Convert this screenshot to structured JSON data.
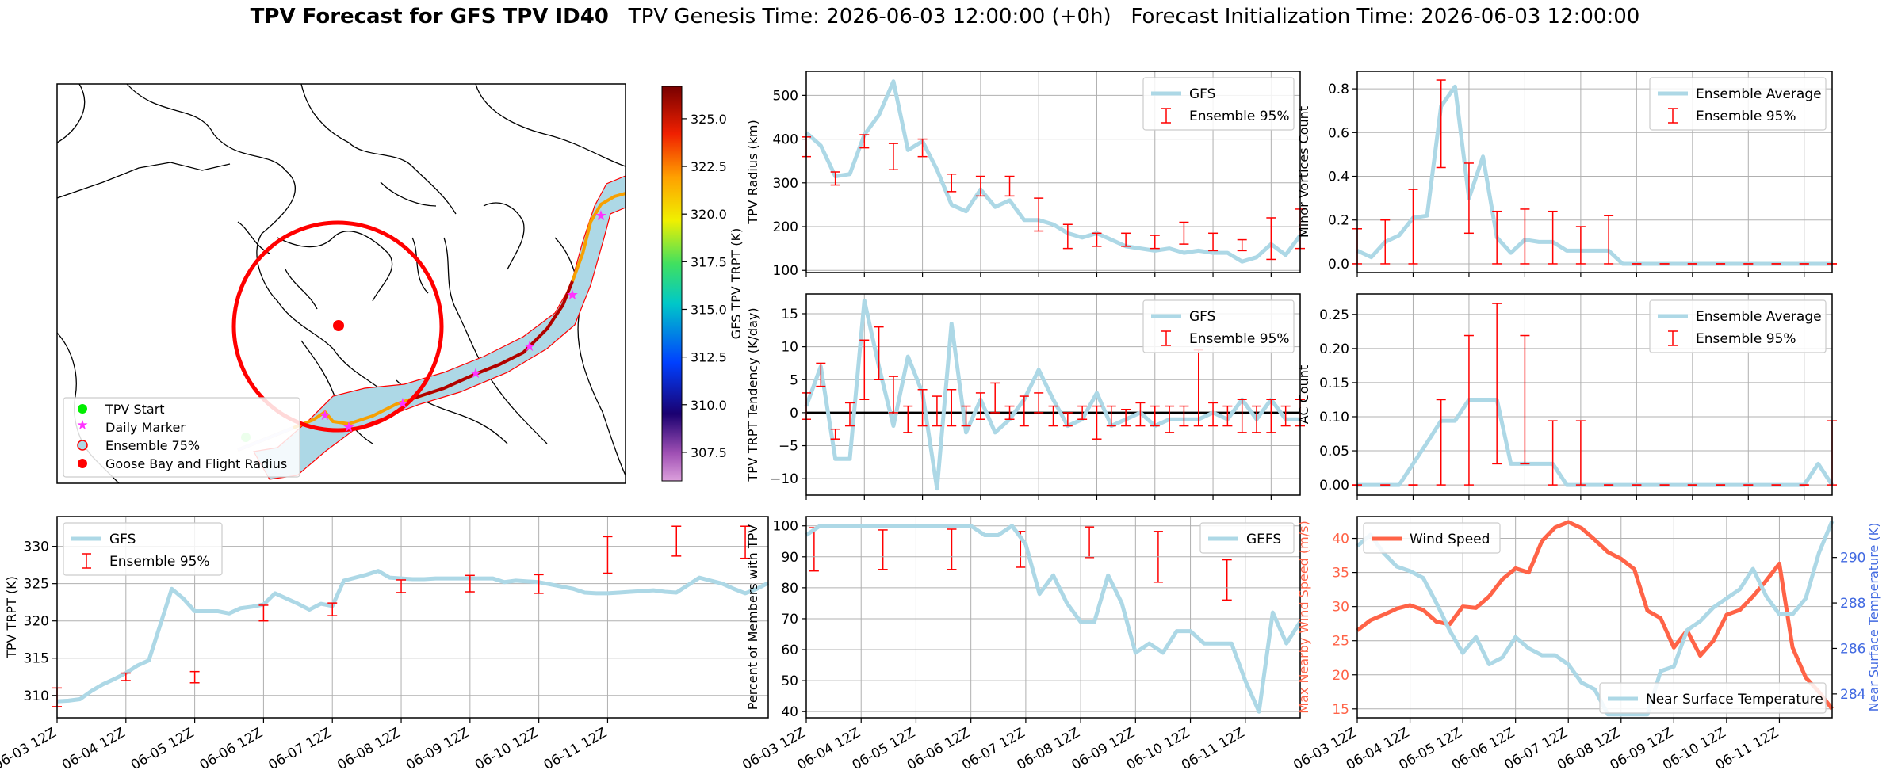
{
  "suptitle": {
    "bold": "TPV Forecast for GFS TPV ID40",
    "rest": "   TPV Genesis Time: 2026-06-03 12:00:00 (+0h)   Forecast Initialization Time: 2026-06-03 12:00:00"
  },
  "colors": {
    "light_blue": "#add8e6",
    "red": "#ff0000",
    "orange_red": "#ff6347",
    "royal_blue": "#4169e1"
  },
  "x_ticks": [
    "06-03 12Z",
    "06-04 12Z",
    "06-05 12Z",
    "06-06 12Z",
    "06-07 12Z",
    "06-08 12Z",
    "06-09 12Z",
    "06-10 12Z",
    "06-11 12Z"
  ],
  "map": {
    "legend": [
      "TPV Start",
      "Daily Marker",
      "Ensemble 75%",
      "Goose Bay and Flight Radius"
    ],
    "colorbar": {
      "label": "GFS TPV TRPT (K)",
      "min": 306,
      "max": 326.7,
      "ticks": [
        "307.5",
        "310.0",
        "312.5",
        "315.0",
        "317.5",
        "320.0",
        "322.5",
        "325.0"
      ]
    }
  },
  "chart_data": [
    {
      "id": "radius",
      "type": "line",
      "ylabel": "TPV Radius (km)",
      "ylim": [
        95,
        555
      ],
      "yticks": [
        "100",
        "200",
        "300",
        "400",
        "500"
      ],
      "legend": [
        "GFS",
        "Ensemble 95%"
      ],
      "series": [
        {
          "name": "GFS",
          "values": [
            415,
            385,
            315,
            320,
            410,
            455,
            532,
            375,
            395,
            330,
            250,
            235,
            285,
            245,
            260,
            215,
            215,
            205,
            185,
            175,
            185,
            170,
            155,
            150,
            145,
            150,
            140,
            145,
            140,
            140,
            120,
            130,
            160,
            135,
            180
          ]
        }
      ],
      "errorbars": [
        [
          0,
          405,
          360
        ],
        [
          2,
          325,
          295
        ],
        [
          4,
          410,
          380
        ],
        [
          6,
          390,
          330
        ],
        [
          8,
          400,
          360
        ],
        [
          10,
          320,
          280
        ],
        [
          12,
          315,
          270
        ],
        [
          14,
          315,
          270
        ],
        [
          16,
          265,
          190
        ],
        [
          18,
          205,
          150
        ],
        [
          20,
          185,
          155
        ],
        [
          22,
          185,
          155
        ],
        [
          24,
          180,
          150
        ],
        [
          26,
          210,
          160
        ],
        [
          28,
          185,
          145
        ],
        [
          30,
          170,
          145
        ],
        [
          32,
          220,
          125
        ],
        [
          34,
          240,
          150
        ]
      ]
    },
    {
      "id": "minor",
      "type": "line",
      "ylabel": "Minor Vortices Count",
      "ylim": [
        -0.04,
        0.88
      ],
      "yticks": [
        "0.0",
        "0.2",
        "0.4",
        "0.6",
        "0.8"
      ],
      "legend": [
        "Ensemble Average",
        "Ensemble 95%"
      ],
      "series": [
        {
          "name": "Ensemble Average",
          "values": [
            0.06,
            0.03,
            0.1,
            0.13,
            0.21,
            0.22,
            0.72,
            0.81,
            0.3,
            0.49,
            0.12,
            0.05,
            0.11,
            0.1,
            0.1,
            0.06,
            0.06,
            0.06,
            0.06,
            0,
            0,
            0,
            0,
            0,
            0,
            0,
            0,
            0,
            0,
            0,
            0,
            0,
            0,
            0,
            0
          ]
        }
      ],
      "errorbars": [
        [
          0,
          0.16,
          0
        ],
        [
          2,
          0.2,
          0
        ],
        [
          4,
          0.34,
          0
        ],
        [
          6,
          0.84,
          0.44
        ],
        [
          8,
          0.46,
          0.14
        ],
        [
          10,
          0.24,
          0
        ],
        [
          12,
          0.25,
          0
        ],
        [
          14,
          0.24,
          0
        ],
        [
          16,
          0.17,
          0
        ],
        [
          18,
          0.22,
          0
        ],
        [
          20,
          0,
          0
        ],
        [
          22,
          0,
          0
        ],
        [
          24,
          0,
          0
        ],
        [
          26,
          0,
          0
        ],
        [
          28,
          0,
          0
        ],
        [
          30,
          0,
          0
        ],
        [
          32,
          0,
          0
        ],
        [
          34,
          0,
          0
        ]
      ]
    },
    {
      "id": "tendency",
      "type": "line",
      "ylabel": "TPV TRPT Tendency (K/day)",
      "ylim": [
        -12.5,
        18
      ],
      "yticks": [
        "−10",
        "−5",
        "0",
        "5",
        "10",
        "15"
      ],
      "zero_line": true,
      "legend": [
        "GFS",
        "Ensemble 95%"
      ],
      "series": [
        {
          "name": "GFS",
          "values": [
            1,
            7,
            -7,
            -7,
            17,
            7,
            -2,
            8.5,
            3,
            -11.5,
            13.5,
            -3,
            2,
            -3,
            -1,
            2,
            6.5,
            2,
            -2,
            -1,
            3,
            -2,
            -1,
            0,
            -2,
            -1,
            -1,
            -1,
            0,
            -1,
            2,
            -1,
            2,
            -1,
            -1
          ]
        }
      ],
      "errorbars": [
        [
          0,
          3,
          -1
        ],
        [
          1,
          7.5,
          4
        ],
        [
          2,
          -2.5,
          -4
        ],
        [
          3,
          1.5,
          -2
        ],
        [
          4,
          11,
          2
        ],
        [
          5,
          13,
          5
        ],
        [
          6,
          5.5,
          0
        ],
        [
          7,
          1,
          -3
        ],
        [
          8,
          3.5,
          -2
        ],
        [
          9,
          2.5,
          -2
        ],
        [
          10,
          3.5,
          -2
        ],
        [
          11,
          1,
          -2
        ],
        [
          12,
          3,
          -1
        ],
        [
          13,
          4.5,
          0
        ],
        [
          14,
          1,
          -1
        ],
        [
          15,
          2.5,
          -2
        ],
        [
          16,
          3,
          0
        ],
        [
          17,
          1,
          -2
        ],
        [
          18,
          0,
          -2
        ],
        [
          19,
          1,
          -1
        ],
        [
          20,
          1,
          -4
        ],
        [
          21,
          1,
          -2
        ],
        [
          22,
          0.5,
          -2
        ],
        [
          23,
          1.5,
          -2
        ],
        [
          24,
          1,
          -2
        ],
        [
          25,
          1,
          -3
        ],
        [
          26,
          1,
          -2
        ],
        [
          27,
          9.5,
          -2
        ],
        [
          28,
          1.5,
          -2
        ],
        [
          29,
          1,
          -2
        ],
        [
          30,
          2,
          -3
        ],
        [
          31,
          1,
          -3
        ],
        [
          32,
          2,
          -3
        ],
        [
          33,
          1,
          -2
        ],
        [
          34,
          2,
          -2
        ]
      ]
    },
    {
      "id": "ac",
      "type": "line",
      "ylabel": "AC Count",
      "ylim": [
        -0.015,
        0.28
      ],
      "yticks": [
        "0.00",
        "0.05",
        "0.10",
        "0.15",
        "0.20",
        "0.25"
      ],
      "legend": [
        "Ensemble Average",
        "Ensemble 95%"
      ],
      "series": [
        {
          "name": "Ensemble Average",
          "values": [
            0,
            0,
            0,
            0,
            0.031,
            0.062,
            0.094,
            0.094,
            0.125,
            0.125,
            0.125,
            0.031,
            0.031,
            0.031,
            0.031,
            0,
            0,
            0,
            0,
            0,
            0,
            0,
            0,
            0,
            0,
            0,
            0,
            0,
            0,
            0,
            0,
            0,
            0,
            0.031,
            0
          ]
        }
      ],
      "errorbars": [
        [
          0,
          0,
          0
        ],
        [
          2,
          0,
          0
        ],
        [
          4,
          0,
          0
        ],
        [
          6,
          0.125,
          0
        ],
        [
          8,
          0.219,
          0
        ],
        [
          10,
          0.266,
          0.031
        ],
        [
          12,
          0.219,
          0.031
        ],
        [
          14,
          0.094,
          0
        ],
        [
          16,
          0.094,
          0
        ],
        [
          18,
          0,
          0
        ],
        [
          20,
          0,
          0
        ],
        [
          22,
          0,
          0
        ],
        [
          24,
          0,
          0
        ],
        [
          26,
          0,
          0
        ],
        [
          28,
          0,
          0
        ],
        [
          30,
          0,
          0
        ],
        [
          32,
          0,
          0
        ],
        [
          34,
          0.094,
          0
        ]
      ]
    },
    {
      "id": "trpt",
      "type": "line",
      "ylabel": "TPV TRPT (K)",
      "ylim": [
        307,
        334
      ],
      "yticks": [
        "310",
        "315",
        "320",
        "325",
        "330"
      ],
      "legend": [
        "GFS",
        "Ensemble 95%"
      ],
      "series": [
        {
          "name": "GFS",
          "values": [
            309.2,
            309.3,
            309.5,
            310.6,
            311.5,
            312.2,
            313,
            314,
            314.7,
            319.5,
            324.3,
            323,
            321.3,
            321.3,
            321.3,
            321,
            321.7,
            321.9,
            322.2,
            323.7,
            323,
            322.3,
            321.5,
            322.3,
            322,
            325.4,
            325.8,
            326.2,
            326.7,
            325.8,
            325.7,
            325.6,
            325.6,
            325.7,
            325.7,
            325.7,
            325.7,
            325.7,
            325.7,
            325.2,
            325.4,
            325.3,
            325.2,
            324.9,
            324.6,
            324.3,
            323.8,
            323.7,
            323.7,
            323.8,
            323.9,
            324,
            324.1,
            323.9,
            323.8,
            324.8,
            325.8,
            325.4,
            325.0,
            324.3,
            323.7,
            324.3,
            325.1
          ]
        }
      ],
      "errorbars": [
        [
          0,
          311,
          308.5
        ],
        [
          6,
          313,
          312
        ],
        [
          12,
          313.2,
          311.7
        ],
        [
          18,
          322.1,
          320
        ],
        [
          24,
          322.4,
          320.7
        ],
        [
          30,
          325.5,
          323.8
        ],
        [
          36,
          326.1,
          323.9
        ],
        [
          42,
          326.2,
          323.7
        ],
        [
          48,
          331.3,
          326.4
        ],
        [
          54,
          332.7,
          328.7
        ],
        [
          60,
          332.7,
          328.4
        ],
        [
          66,
          332.5,
          326.7
        ],
        [
          72,
          332.2,
          326.9
        ],
        [
          78,
          332.3,
          326.9
        ],
        [
          84,
          332,
          327.2
        ],
        [
          90,
          332.6,
          328.5
        ],
        [
          96,
          332,
          325.2
        ],
        [
          102,
          328.2,
          322.8
        ]
      ]
    },
    {
      "id": "members",
      "type": "line",
      "ylabel": "Percent of Members with TPV",
      "ylim": [
        38,
        103
      ],
      "yticks": [
        "40",
        "50",
        "60",
        "70",
        "80",
        "90",
        "100"
      ],
      "legend": [
        "GEFS"
      ],
      "series": [
        {
          "name": "GEFS",
          "values": [
            97,
            100,
            100,
            100,
            100,
            100,
            100,
            100,
            100,
            100,
            100,
            100,
            100,
            97,
            97,
            100,
            94,
            78,
            84,
            75,
            69,
            69,
            84,
            75,
            59,
            62,
            59,
            66,
            66,
            62,
            62,
            62,
            50,
            40,
            72,
            62,
            69
          ]
        }
      ]
    },
    {
      "id": "wind",
      "type": "line",
      "ylabel": "Max Nearby Wind Speed (m/s)",
      "ylim": [
        13.7,
        43.2
      ],
      "yticks": [
        "15",
        "20",
        "25",
        "30",
        "35",
        "40"
      ],
      "y2label": "Near Surface Temperature (K)",
      "y2lim": [
        282.95,
        291.8
      ],
      "y2ticks": [
        "284",
        "286",
        "288",
        "290"
      ],
      "legend": [
        "Wind Speed"
      ],
      "legend2": [
        "Near Surface Temperature"
      ],
      "series": [
        {
          "name": "Wind Speed",
          "values": [
            26.5,
            28,
            28.8,
            29.7,
            30.2,
            29.5,
            27.8,
            27.4,
            30,
            29.8,
            31.5,
            34,
            35.6,
            35,
            39.6,
            41.6,
            42.4,
            41.5,
            39.8,
            38,
            37,
            35.5,
            29.4,
            28.3,
            24,
            26.5,
            22.8,
            25,
            28.8,
            29.5,
            31.5,
            33.8,
            36.3,
            24,
            19.6,
            17.5,
            15
          ]
        },
        {
          "name": "Near Surface Temperature",
          "values": [
            290.5,
            291,
            290.2,
            289.6,
            289.4,
            289.1,
            288,
            286.8,
            285.8,
            286.5,
            285.3,
            285.6,
            286.5,
            286,
            285.7,
            285.7,
            285.3,
            284.5,
            284.2,
            283.1,
            283.1,
            283.1,
            283.1,
            285,
            285.2,
            286.8,
            287.2,
            287.8,
            288.2,
            288.6,
            289.5,
            288.3,
            287.5,
            287.5,
            288.2,
            290.2,
            291.6
          ]
        }
      ]
    }
  ]
}
